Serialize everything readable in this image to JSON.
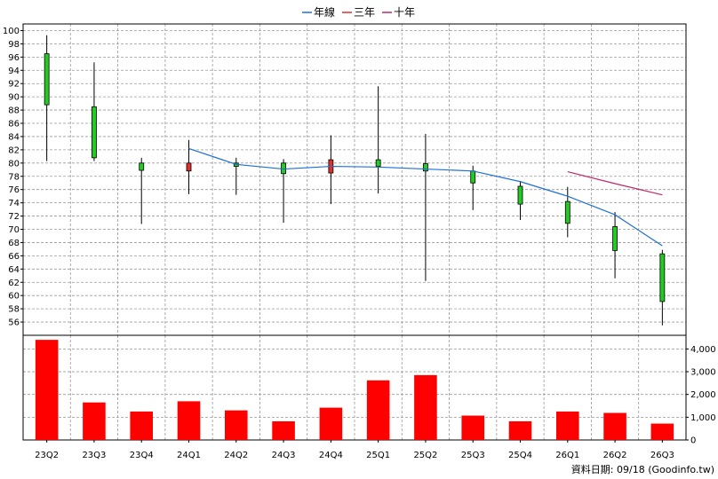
{
  "chart_data": {
    "type": "candlestick",
    "legend": [
      {
        "label": "年線",
        "color": "#1e6fd9"
      },
      {
        "label": "三年",
        "color": "#e0302c"
      },
      {
        "label": "十年",
        "color": "#c0286a"
      }
    ],
    "categories": [
      "23Q2",
      "23Q3",
      "23Q4",
      "24Q1",
      "24Q2",
      "24Q3",
      "24Q4",
      "25Q1",
      "25Q2",
      "25Q3",
      "25Q4",
      "26Q1",
      "26Q2",
      "26Q3"
    ],
    "price": {
      "ylim": [
        54,
        101
      ],
      "ticks": [
        56,
        58,
        60,
        62,
        64,
        66,
        68,
        70,
        72,
        74,
        76,
        78,
        80,
        82,
        84,
        86,
        88,
        90,
        92,
        94,
        96,
        98,
        100
      ],
      "candles": [
        {
          "open": 96.5,
          "close": 88.8,
          "high": 99.3,
          "low": 80.3
        },
        {
          "open": 88.5,
          "close": 80.8,
          "high": 95.2,
          "low": 80.3
        },
        {
          "open": 80.0,
          "close": 78.9,
          "high": 80.8,
          "low": 70.8
        },
        {
          "open": 78.8,
          "close": 80.0,
          "high": 83.5,
          "low": 75.3
        },
        {
          "open": 80.0,
          "close": 79.5,
          "high": 80.8,
          "low": 75.2
        },
        {
          "open": 80.0,
          "close": 78.4,
          "high": 80.6,
          "low": 71.0
        },
        {
          "open": 78.5,
          "close": 80.5,
          "high": 84.2,
          "low": 73.8
        },
        {
          "open": 80.5,
          "close": 79.5,
          "high": 91.6,
          "low": 75.4
        },
        {
          "open": 79.9,
          "close": 78.8,
          "high": 84.4,
          "low": 62.2
        },
        {
          "open": 78.8,
          "close": 77.0,
          "high": 79.6,
          "low": 72.9
        },
        {
          "open": 76.5,
          "close": 73.8,
          "high": 77.3,
          "low": 71.4
        },
        {
          "open": 74.2,
          "close": 70.9,
          "high": 76.4,
          "low": 68.8
        },
        {
          "open": 70.4,
          "close": 66.8,
          "high": 72.6,
          "low": 62.6
        },
        {
          "open": 66.3,
          "close": 59.1,
          "high": 66.9,
          "low": 55.5
        }
      ],
      "annual_line": [
        null,
        null,
        null,
        82.2,
        79.8,
        79.1,
        79.5,
        79.4,
        79.1,
        78.8,
        77.2,
        75.0,
        72.2,
        67.5
      ],
      "ten_year_line": [
        null,
        null,
        null,
        null,
        null,
        null,
        null,
        null,
        null,
        null,
        null,
        78.7,
        76.9,
        75.2
      ]
    },
    "volume": {
      "ylim": [
        0,
        4600
      ],
      "ticks": [
        0,
        1000,
        2000,
        3000,
        4000
      ],
      "tick_labels": [
        "0",
        "1,000",
        "2,000",
        "3,000",
        "4,000"
      ],
      "values": [
        4400,
        1650,
        1250,
        1700,
        1300,
        820,
        1420,
        2620,
        2850,
        1070,
        820,
        1250,
        1190,
        720
      ]
    },
    "colors": {
      "up": "#e0302c",
      "down": "#22cc22",
      "volume": "#ff0000",
      "annual": "#1e6fd9",
      "ten_year": "#c0286a"
    }
  },
  "footer": {
    "source": "資料日期: 09/18  (Goodinfo.tw)"
  }
}
